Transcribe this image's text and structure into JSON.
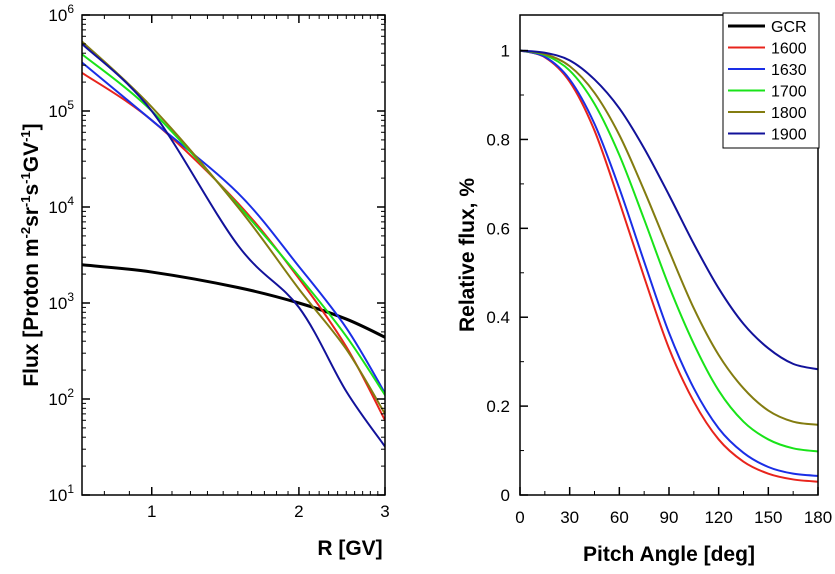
{
  "chart_data": [
    {
      "type": "line",
      "title": "",
      "xlabel": "R [GV]",
      "ylabel_parts": [
        "Flux [Proton m",
        "-2",
        "sr",
        "-1",
        "s",
        "-1",
        "GV",
        "-1",
        "]"
      ],
      "xscale": "log",
      "yscale": "log",
      "xlim": [
        0.72,
        3.0
      ],
      "ylim": [
        10,
        1000000
      ],
      "x_ticks": [
        1,
        2,
        3
      ],
      "x_tick_labels": [
        "1",
        "2",
        "3"
      ],
      "y_ticks": [
        10,
        100,
        1000,
        10000,
        100000,
        1000000
      ],
      "y_tick_labels": [
        {
          "base": "10",
          "exp": "1"
        },
        {
          "base": "10",
          "exp": "2"
        },
        {
          "base": "10",
          "exp": "3"
        },
        {
          "base": "10",
          "exp": "4"
        },
        {
          "base": "10",
          "exp": "5"
        },
        {
          "base": "10",
          "exp": "6"
        }
      ],
      "grid": false,
      "series": [
        {
          "name": "GCR",
          "color": "#000000",
          "x": [
            0.72,
            1.0,
            1.5,
            2.0,
            2.5,
            3.0
          ],
          "values": [
            2500,
            2100,
            1450,
            1000,
            680,
            440
          ]
        },
        {
          "name": "1600",
          "color": "#e8241c",
          "x": [
            0.72,
            1.0,
            1.5,
            2.0,
            2.5,
            3.0
          ],
          "values": [
            250000,
            80000,
            11000,
            1800,
            350,
            60
          ]
        },
        {
          "name": "1630",
          "color": "#1a2ee6",
          "x": [
            0.72,
            1.0,
            1.5,
            2.0,
            2.5,
            3.0
          ],
          "values": [
            320000,
            80000,
            14000,
            2400,
            550,
            115
          ]
        },
        {
          "name": "1700",
          "color": "#19e319",
          "x": [
            0.72,
            1.0,
            1.5,
            2.0,
            2.5,
            3.0
          ],
          "values": [
            390000,
            100000,
            10500,
            1900,
            450,
            110
          ]
        },
        {
          "name": "1800",
          "color": "#837c10",
          "x": [
            0.72,
            1.0,
            1.5,
            2.0,
            2.5,
            3.0
          ],
          "values": [
            530000,
            110000,
            10000,
            1400,
            330,
            70
          ]
        },
        {
          "name": "1900",
          "color": "#12129a",
          "x": [
            0.72,
            1.0,
            1.5,
            2.0,
            2.5,
            3.0
          ],
          "values": [
            500000,
            100000,
            4000,
            900,
            120,
            32
          ]
        }
      ]
    },
    {
      "type": "line",
      "title": "",
      "xlabel": "Pitch Angle [deg]",
      "ylabel": "Relative flux, %",
      "xlim": [
        0,
        180
      ],
      "ylim": [
        0,
        1.08
      ],
      "x_ticks": [
        0,
        30,
        60,
        90,
        120,
        150,
        180
      ],
      "x_tick_labels": [
        "0",
        "30",
        "60",
        "90",
        "120",
        "150",
        "180"
      ],
      "y_ticks": [
        0,
        0.2,
        0.4,
        0.6,
        0.8,
        1.0
      ],
      "y_tick_labels": [
        "0",
        "0.2",
        "0.4",
        "0.6",
        "0.8",
        "1"
      ],
      "grid": false,
      "legend": {
        "position": "top-right",
        "entries": [
          "GCR",
          "1600",
          "1630",
          "1700",
          "1800",
          "1900"
        ]
      },
      "series": [
        {
          "name": "1600",
          "color": "#e8241c",
          "x": [
            0,
            15,
            30,
            45,
            60,
            75,
            90,
            105,
            120,
            135,
            150,
            165,
            180
          ],
          "values": [
            1.0,
            0.985,
            0.93,
            0.82,
            0.66,
            0.49,
            0.33,
            0.21,
            0.125,
            0.075,
            0.048,
            0.035,
            0.03
          ]
        },
        {
          "name": "1630",
          "color": "#1a2ee6",
          "x": [
            0,
            15,
            30,
            45,
            60,
            75,
            90,
            105,
            120,
            135,
            150,
            165,
            180
          ],
          "values": [
            1.0,
            0.986,
            0.935,
            0.835,
            0.69,
            0.525,
            0.365,
            0.24,
            0.15,
            0.095,
            0.063,
            0.048,
            0.043
          ]
        },
        {
          "name": "1700",
          "color": "#19e319",
          "x": [
            0,
            15,
            30,
            45,
            60,
            75,
            90,
            105,
            120,
            135,
            150,
            165,
            180
          ],
          "values": [
            1.0,
            0.99,
            0.955,
            0.88,
            0.765,
            0.62,
            0.47,
            0.34,
            0.235,
            0.165,
            0.125,
            0.105,
            0.098
          ]
        },
        {
          "name": "1800",
          "color": "#837c10",
          "x": [
            0,
            15,
            30,
            45,
            60,
            75,
            90,
            105,
            120,
            135,
            150,
            165,
            180
          ],
          "values": [
            1.0,
            0.992,
            0.965,
            0.905,
            0.81,
            0.685,
            0.55,
            0.42,
            0.315,
            0.24,
            0.19,
            0.165,
            0.158
          ]
        },
        {
          "name": "1900",
          "color": "#12129a",
          "x": [
            0,
            15,
            30,
            45,
            60,
            75,
            90,
            105,
            120,
            135,
            150,
            165,
            180
          ],
          "values": [
            1.0,
            0.995,
            0.978,
            0.935,
            0.87,
            0.78,
            0.675,
            0.565,
            0.465,
            0.385,
            0.33,
            0.295,
            0.283
          ]
        }
      ]
    }
  ]
}
